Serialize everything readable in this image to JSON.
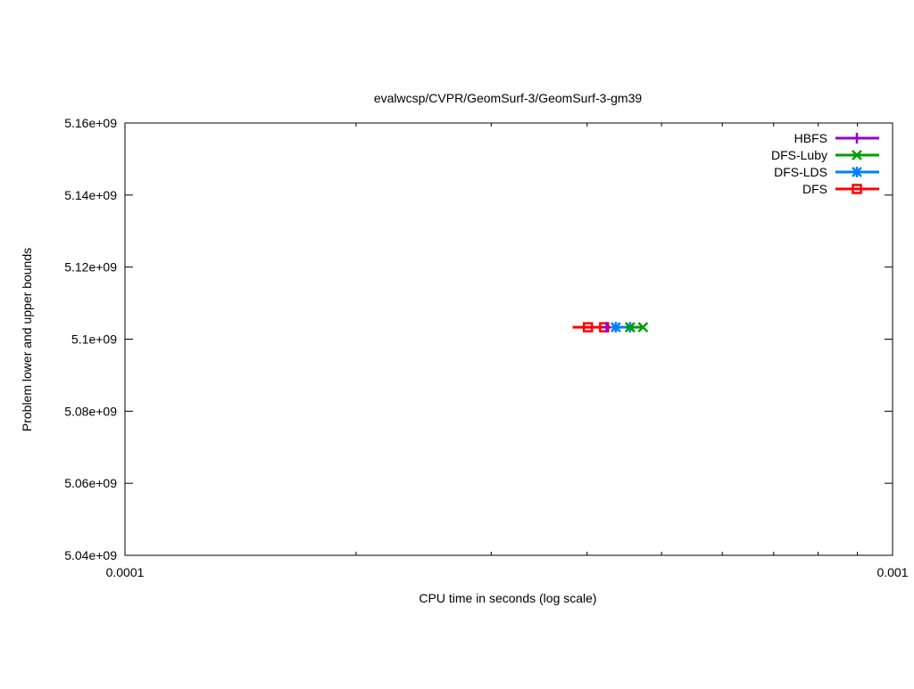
{
  "chart_data": {
    "type": "line",
    "title": "evalwcsp/CVPR/GeomSurf-3/GeomSurf-3-gm39",
    "xlabel": "CPU time in seconds (log scale)",
    "ylabel": "Problem lower and upper bounds",
    "xscale": "log",
    "xlim": [
      0.0001,
      0.001
    ],
    "ylim": [
      5040000000,
      5160000000
    ],
    "xticks": [
      {
        "v": 0.0001,
        "label": "0.0001"
      },
      {
        "v": 0.001,
        "label": "0.001"
      }
    ],
    "yticks": [
      {
        "v": 5040000000,
        "label": "5.04e+09"
      },
      {
        "v": 5060000000,
        "label": "5.06e+09"
      },
      {
        "v": 5080000000,
        "label": "5.08e+09"
      },
      {
        "v": 5100000000,
        "label": "5.1e+09"
      },
      {
        "v": 5120000000,
        "label": "5.12e+09"
      },
      {
        "v": 5140000000,
        "label": "5.14e+09"
      },
      {
        "v": 5160000000,
        "label": "5.16e+09"
      }
    ],
    "grid": false,
    "legend_position": "top-right",
    "series": [
      {
        "name": "HBFS",
        "color": "#9400d3",
        "marker": "plus",
        "x": [
          0.000424
        ],
        "y": [
          5103300000
        ],
        "line_start": 0.000424
      },
      {
        "name": "DFS-Luby",
        "color": "#009e00",
        "marker": "x",
        "x": [
          0.000455,
          0.000473
        ],
        "y": [
          5103300000,
          5103300000
        ],
        "line_start": 0.00045
      },
      {
        "name": "DFS-LDS",
        "color": "#0080ff",
        "marker": "star",
        "x": [
          0.000436,
          0.000455
        ],
        "y": [
          5103300000,
          5103300000
        ],
        "line_start": 0.00043
      },
      {
        "name": "DFS",
        "color": "#ff0000",
        "marker": "square",
        "x": [
          0.000401,
          0.000421
        ],
        "y": [
          5103300000,
          5103300000
        ],
        "line_start": 0.000383
      }
    ]
  }
}
